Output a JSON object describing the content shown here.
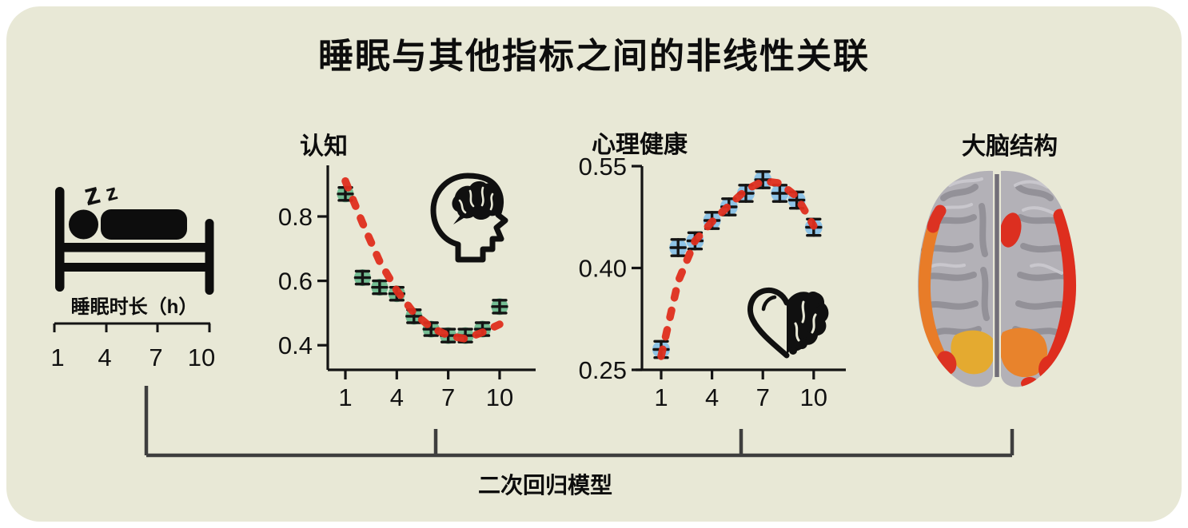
{
  "figure": {
    "title": "睡眠与其他指标之间的非线性关联",
    "bottom_label": "二次回归模型",
    "background_color": "#e8e8d6",
    "bracket_color": "#3e3e3e"
  },
  "sleep": {
    "icon": "bed-sleeping-person-icon",
    "z1": "z",
    "z2": "z",
    "label": "睡眠时长（h）",
    "ticks": [
      "1",
      "4",
      "7",
      "10"
    ]
  },
  "brain_panel": {
    "title": "大脑结构",
    "illustration": "brain-top-view-with-highlighted-regions",
    "region_colors": [
      "#de2e1e",
      "#e8832c",
      "#e4aa30"
    ],
    "cortex_color": "#b3b1b7"
  },
  "icons": {
    "cognition": "head-with-brain-icon",
    "mental": "half-heart-half-brain-icon"
  },
  "chart_data": [
    {
      "id": "cognition",
      "type": "scatter",
      "title": "认知",
      "x": [
        1,
        2,
        3,
        4,
        5,
        6,
        7,
        8,
        9,
        10
      ],
      "values": [
        0.87,
        0.61,
        0.58,
        0.56,
        0.49,
        0.45,
        0.43,
        0.43,
        0.45,
        0.52
      ],
      "ci_half": 0.02,
      "fit_curve": [
        0.91,
        0.78,
        0.66,
        0.57,
        0.5,
        0.455,
        0.43,
        0.42,
        0.44,
        0.465
      ],
      "fit_type": "quadratic",
      "x_ticks": [
        1,
        4,
        7,
        10
      ],
      "y_ticks": [
        {
          "label": "0.8",
          "value": 0.8
        },
        {
          "label": "0.6",
          "value": 0.6
        },
        {
          "label": "0.4",
          "value": 0.4
        }
      ],
      "xlim": [
        1,
        10
      ],
      "ylim": [
        0.32,
        0.96
      ],
      "point_color": "#74bd93",
      "curve_color": "#df2e1e",
      "curve_style": "dashed",
      "error_bar_color": "#141414"
    },
    {
      "id": "mental",
      "type": "scatter",
      "title": "心理健康",
      "x": [
        1,
        2,
        3,
        4,
        5,
        6,
        7,
        8,
        9,
        10
      ],
      "values": [
        0.28,
        0.43,
        0.44,
        0.47,
        0.49,
        0.51,
        0.53,
        0.51,
        0.5,
        0.46
      ],
      "ci_half": 0.012,
      "fit_curve": [
        0.27,
        0.38,
        0.44,
        0.468,
        0.492,
        0.515,
        0.528,
        0.525,
        0.505,
        0.462
      ],
      "fit_type": "quadratic",
      "x_ticks": [
        1,
        4,
        7,
        10
      ],
      "y_ticks": [
        {
          "label": "0.55",
          "value": 0.55
        },
        {
          "label": "0.40",
          "value": 0.4
        },
        {
          "label": "0.25",
          "value": 0.25
        }
      ],
      "xlim": [
        1,
        10
      ],
      "ylim": [
        0.25,
        0.55
      ],
      "point_color": "#8ec3e6",
      "curve_color": "#df2e1e",
      "curve_style": "dashed",
      "error_bar_color": "#141414"
    }
  ]
}
